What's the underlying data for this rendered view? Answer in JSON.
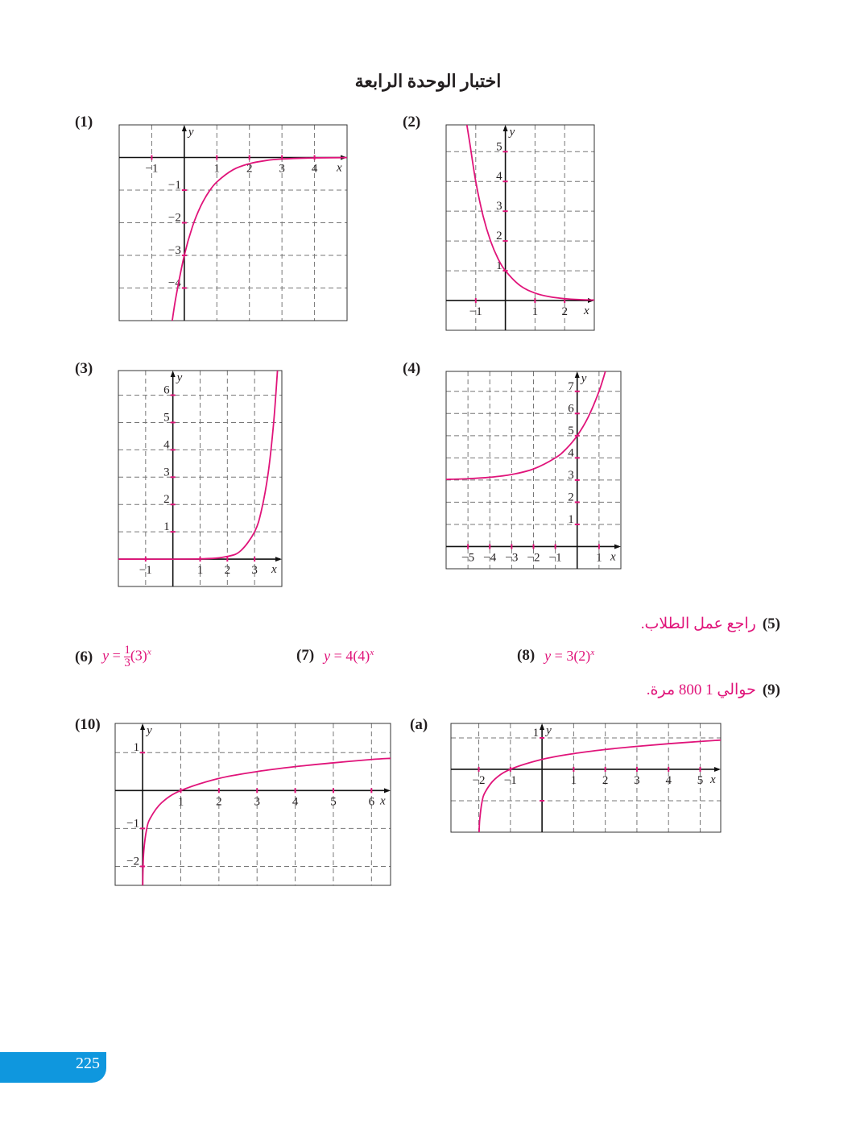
{
  "title": "اختبار الوحدة الرابعة",
  "labels": {
    "q1": "(1)",
    "q2": "(2)",
    "q3": "(3)",
    "q4": "(4)",
    "q5": "(5)",
    "q6": "(6)",
    "q7": "(7)",
    "q8": "(8)",
    "q9": "(9)",
    "q10": "(10)",
    "qa": "(a)"
  },
  "answers": {
    "q5": "راجع عمل الطلاب.",
    "q6": {
      "lhs": "y",
      "eq": "=",
      "num": "1",
      "den": "3",
      "base": "(3)",
      "exp": "x"
    },
    "q7": {
      "lhs": "y",
      "eq": "=",
      "coef": "4(4)",
      "exp": "x"
    },
    "q8": {
      "lhs": "y",
      "eq": "=",
      "coef": "3(2)",
      "exp": "x"
    },
    "q9": "حوالي 1 800 مرة."
  },
  "page_number": "225",
  "colors": {
    "curve": "#e0147a",
    "accent": "#0f97de",
    "grid": "#777777"
  },
  "chart_data": [
    {
      "id": "q1",
      "type": "line",
      "xlabel": "x",
      "ylabel": "y",
      "xlim": [
        -2,
        5
      ],
      "ylim": [
        -5,
        1
      ],
      "grid": true,
      "xticks": [
        -1,
        1,
        2,
        3,
        4
      ],
      "xticklabels": [
        "−1",
        "1",
        "2",
        "3",
        "4"
      ],
      "yticks": [
        -1,
        -2,
        -3,
        -4
      ],
      "yticklabels": [
        "−1",
        "−2",
        "−3",
        "−4"
      ],
      "points": [
        [
          -0.37,
          -5
        ],
        [
          -0.25,
          -4.24
        ],
        [
          0,
          -3
        ],
        [
          0.25,
          -2.12
        ],
        [
          0.5,
          -1.5
        ],
        [
          0.75,
          -1.06
        ],
        [
          1,
          -0.75
        ],
        [
          1.5,
          -0.375
        ],
        [
          2,
          -0.19
        ],
        [
          2.5,
          -0.094
        ],
        [
          3,
          -0.047
        ],
        [
          4,
          -0.012
        ],
        [
          5,
          -0.003
        ]
      ]
    },
    {
      "id": "q2",
      "type": "line",
      "xlabel": "x",
      "ylabel": "y",
      "xlim": [
        -2,
        3
      ],
      "ylim": [
        -1,
        5.9
      ],
      "grid": true,
      "xticks": [
        -1,
        1,
        2
      ],
      "xticklabels": [
        "−1",
        "1",
        "2"
      ],
      "yticks": [
        1,
        2,
        3,
        4,
        5
      ],
      "yticklabels": [
        "1",
        "2",
        "3",
        "4",
        "5"
      ],
      "points": [
        [
          -1.3,
          5.9
        ],
        [
          -1.2,
          5.28
        ],
        [
          -1,
          4
        ],
        [
          -0.75,
          2.83
        ],
        [
          -0.5,
          2
        ],
        [
          -0.25,
          1.41
        ],
        [
          0,
          1
        ],
        [
          0.5,
          0.5
        ],
        [
          1,
          0.25
        ],
        [
          1.5,
          0.125
        ],
        [
          2,
          0.0625
        ],
        [
          2.5,
          0.031
        ],
        [
          3,
          0.016
        ]
      ]
    },
    {
      "id": "q3",
      "type": "line",
      "xlabel": "x",
      "ylabel": "y",
      "xlim": [
        -2,
        4
      ],
      "ylim": [
        -1,
        6.9
      ],
      "grid": true,
      "xticks": [
        -1,
        1,
        2,
        3
      ],
      "xticklabels": [
        "−1",
        "1",
        "2",
        "3"
      ],
      "yticks": [
        1,
        2,
        3,
        4,
        5,
        6
      ],
      "yticklabels": [
        "1",
        "2",
        "3",
        "4",
        "5",
        "6"
      ],
      "points": [
        [
          -2,
          0
        ],
        [
          1,
          0.01
        ],
        [
          2,
          0.1
        ],
        [
          2.5,
          0.316
        ],
        [
          3,
          1
        ],
        [
          3.25,
          1.78
        ],
        [
          3.5,
          3.16
        ],
        [
          3.7,
          5
        ],
        [
          3.84,
          6.9
        ]
      ]
    },
    {
      "id": "q4",
      "type": "line",
      "xlabel": "x",
      "ylabel": "y",
      "xlim": [
        -6,
        2
      ],
      "ylim": [
        -1,
        7.9
      ],
      "grid": true,
      "xticks": [
        -5,
        -4,
        -3,
        -2,
        -1,
        1
      ],
      "xticklabels": [
        "−5",
        "−4",
        "−3",
        "−2",
        "−1",
        "1"
      ],
      "yticks": [
        1,
        2,
        3,
        4,
        5,
        6,
        7
      ],
      "yticklabels": [
        "1",
        "2",
        "3",
        "4",
        "5",
        "6",
        "7"
      ],
      "points": [
        [
          -6,
          3.03
        ],
        [
          -5,
          3.06
        ],
        [
          -4,
          3.125
        ],
        [
          -3,
          3.25
        ],
        [
          -2,
          3.5
        ],
        [
          -1,
          4
        ],
        [
          -0.5,
          4.41
        ],
        [
          0,
          5
        ],
        [
          0.5,
          5.83
        ],
        [
          1,
          7
        ],
        [
          1.29,
          7.9
        ]
      ]
    },
    {
      "id": "q10",
      "type": "line",
      "xlabel": "x",
      "ylabel": "y",
      "xlim": [
        -0.72,
        6.5
      ],
      "ylim": [
        -2.5,
        1.77
      ],
      "grid": true,
      "xticks": [
        1,
        2,
        3,
        4,
        5,
        6
      ],
      "xticklabels": [
        "1",
        "2",
        "3",
        "4",
        "5",
        "6"
      ],
      "yticks": [
        1,
        -1,
        -2
      ],
      "yticklabels": [
        "1",
        "−1",
        "−2"
      ],
      "points": [
        [
          0.004,
          -2.5
        ],
        [
          0.01,
          -2.1
        ],
        [
          0.03,
          -1.6
        ],
        [
          0.1,
          -1.05
        ],
        [
          0.2,
          -0.73
        ],
        [
          0.5,
          -0.32
        ],
        [
          1,
          0
        ],
        [
          2,
          0.32
        ],
        [
          3,
          0.5
        ],
        [
          4,
          0.63
        ],
        [
          5,
          0.73
        ],
        [
          6,
          0.82
        ],
        [
          6.5,
          0.85
        ]
      ]
    },
    {
      "id": "qa",
      "type": "line",
      "xlabel": "x",
      "ylabel": "y",
      "xlim": [
        -2.88,
        5.65
      ],
      "ylim": [
        -2,
        1.46
      ],
      "grid": true,
      "xticks": [
        -2,
        -1,
        1,
        2,
        3,
        4,
        5
      ],
      "xticklabels": [
        "−2",
        "−1",
        "1",
        "2",
        "3",
        "4",
        "5"
      ],
      "yticks": [
        1,
        -1
      ],
      "yticklabels": [
        "1",
        ""
      ],
      "points": [
        [
          -1.99,
          -2
        ],
        [
          -1.97,
          -1.6
        ],
        [
          -1.9,
          -1.05
        ],
        [
          -1.8,
          -0.73
        ],
        [
          -1.5,
          -0.32
        ],
        [
          -1,
          0
        ],
        [
          0,
          0.315
        ],
        [
          1,
          0.5
        ],
        [
          2,
          0.63
        ],
        [
          3,
          0.73
        ],
        [
          4,
          0.815
        ],
        [
          5,
          0.886
        ],
        [
          5.65,
          0.93
        ]
      ]
    }
  ]
}
